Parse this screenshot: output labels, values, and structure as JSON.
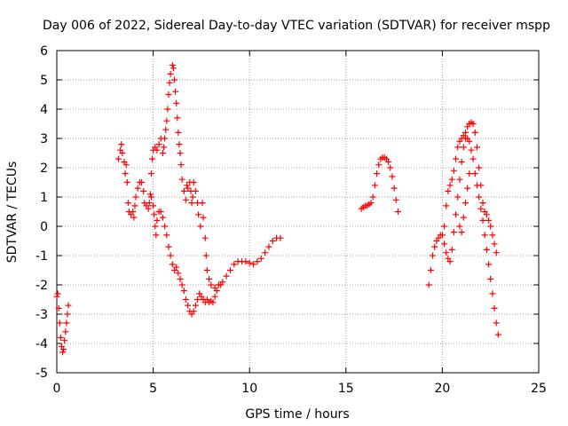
{
  "chart_data": {
    "type": "scatter",
    "title": "Day 006 of 2022, Sidereal Day-to-day VTEC variation (SDTVAR) for receiver mspp",
    "xlabel": "GPS time / hours",
    "ylabel": "SDTVAR / TECUs",
    "xlim": [
      0,
      25
    ],
    "ylim": [
      -5,
      6
    ],
    "x_ticks": [
      0,
      5,
      10,
      15,
      20,
      25
    ],
    "y_ticks": [
      -5,
      -4,
      -3,
      -2,
      -1,
      0,
      1,
      2,
      3,
      4,
      5,
      6
    ],
    "grid": true,
    "marker": "+",
    "color": "#ff0000",
    "series": [
      {
        "points": [
          [
            0.0,
            -2.4
          ],
          [
            0.05,
            -2.3
          ],
          [
            0.1,
            -2.8
          ],
          [
            0.15,
            -3.3
          ],
          [
            0.2,
            -3.8
          ],
          [
            0.25,
            -4.1
          ],
          [
            0.3,
            -4.3
          ],
          [
            0.35,
            -4.2
          ],
          [
            0.4,
            -3.9
          ],
          [
            0.45,
            -3.6
          ],
          [
            0.5,
            -3.3
          ],
          [
            0.55,
            -3.0
          ],
          [
            0.6,
            -2.7
          ],
          [
            3.2,
            2.3
          ],
          [
            3.3,
            2.6
          ],
          [
            3.35,
            2.8
          ],
          [
            3.4,
            2.5
          ],
          [
            3.5,
            2.2
          ],
          [
            3.55,
            1.8
          ],
          [
            3.6,
            2.1
          ],
          [
            3.65,
            1.5
          ],
          [
            3.7,
            0.8
          ],
          [
            3.75,
            0.5
          ],
          [
            3.85,
            0.4
          ],
          [
            3.95,
            0.5
          ],
          [
            4.0,
            0.3
          ],
          [
            4.05,
            0.7
          ],
          [
            4.1,
            1.0
          ],
          [
            4.2,
            1.3
          ],
          [
            4.3,
            1.5
          ],
          [
            4.4,
            1.5
          ],
          [
            4.5,
            1.2
          ],
          [
            4.55,
            0.8
          ],
          [
            4.65,
            0.7
          ],
          [
            4.75,
            0.6
          ],
          [
            4.8,
            0.8
          ],
          [
            4.85,
            1.1
          ],
          [
            4.9,
            1.8
          ],
          [
            4.95,
            2.3
          ],
          [
            5.0,
            2.6
          ],
          [
            5.1,
            2.7
          ],
          [
            5.2,
            2.6
          ],
          [
            5.3,
            2.8
          ],
          [
            5.4,
            3.0
          ],
          [
            5.5,
            2.5
          ],
          [
            5.55,
            2.7
          ],
          [
            5.6,
            3.0
          ],
          [
            5.65,
            3.3
          ],
          [
            5.7,
            3.6
          ],
          [
            5.75,
            4.0
          ],
          [
            5.8,
            4.5
          ],
          [
            5.85,
            4.9
          ],
          [
            5.9,
            5.2
          ],
          [
            6.0,
            5.5
          ],
          [
            6.05,
            5.4
          ],
          [
            6.1,
            5.0
          ],
          [
            6.15,
            4.6
          ],
          [
            6.2,
            4.2
          ],
          [
            6.25,
            3.7
          ],
          [
            6.3,
            3.2
          ],
          [
            6.35,
            2.8
          ],
          [
            6.4,
            2.5
          ],
          [
            6.45,
            2.1
          ],
          [
            6.5,
            1.6
          ],
          [
            6.6,
            1.2
          ],
          [
            6.7,
            0.9
          ],
          [
            6.75,
            1.4
          ],
          [
            6.8,
            1.3
          ],
          [
            6.9,
            1.5
          ],
          [
            6.95,
            1.2
          ],
          [
            7.0,
            0.8
          ],
          [
            7.05,
            1.0
          ],
          [
            7.1,
            1.5
          ],
          [
            7.2,
            1.2
          ],
          [
            7.3,
            0.8
          ],
          [
            7.35,
            0.4
          ],
          [
            7.45,
            0.0
          ],
          [
            7.55,
            0.8
          ],
          [
            7.6,
            0.3
          ],
          [
            7.7,
            -0.4
          ],
          [
            7.75,
            -1.0
          ],
          [
            7.8,
            -1.5
          ],
          [
            7.9,
            -1.8
          ],
          [
            8.0,
            -2.0
          ],
          [
            8.2,
            -2.1
          ],
          [
            8.4,
            -2.0
          ],
          [
            8.6,
            -1.9
          ],
          [
            8.8,
            -1.7
          ],
          [
            9.0,
            -1.5
          ],
          [
            9.2,
            -1.3
          ],
          [
            9.4,
            -1.2
          ],
          [
            9.6,
            -1.2
          ],
          [
            9.8,
            -1.2
          ],
          [
            10.0,
            -1.25
          ],
          [
            10.2,
            -1.3
          ],
          [
            10.4,
            -1.2
          ],
          [
            10.6,
            -1.1
          ],
          [
            10.8,
            -0.9
          ],
          [
            11.0,
            -0.7
          ],
          [
            11.2,
            -0.5
          ],
          [
            11.4,
            -0.4
          ],
          [
            11.6,
            -0.4
          ],
          [
            4.9,
            1.0
          ],
          [
            5.0,
            0.7
          ],
          [
            5.05,
            0.4
          ],
          [
            5.1,
            0.0
          ],
          [
            5.15,
            -0.3
          ],
          [
            5.2,
            0.2
          ],
          [
            5.3,
            0.5
          ],
          [
            5.4,
            0.5
          ],
          [
            5.5,
            0.3
          ],
          [
            5.6,
            0.0
          ],
          [
            5.7,
            -0.3
          ],
          [
            5.8,
            -0.7
          ],
          [
            5.9,
            -1.0
          ],
          [
            6.0,
            -1.3
          ],
          [
            6.1,
            -1.5
          ],
          [
            6.2,
            -1.4
          ],
          [
            6.3,
            -1.6
          ],
          [
            6.4,
            -1.8
          ],
          [
            6.5,
            -2.0
          ],
          [
            6.6,
            -2.2
          ],
          [
            6.7,
            -2.5
          ],
          [
            6.8,
            -2.7
          ],
          [
            6.9,
            -2.9
          ],
          [
            7.0,
            -3.0
          ],
          [
            7.1,
            -2.9
          ],
          [
            7.2,
            -2.7
          ],
          [
            7.3,
            -2.5
          ],
          [
            7.4,
            -2.3
          ],
          [
            7.5,
            -2.4
          ],
          [
            7.6,
            -2.5
          ],
          [
            7.7,
            -2.6
          ],
          [
            7.8,
            -2.5
          ],
          [
            7.9,
            -2.6
          ],
          [
            8.0,
            -2.55
          ],
          [
            8.1,
            -2.6
          ],
          [
            8.2,
            -2.4
          ],
          [
            8.3,
            -2.2
          ],
          [
            8.4,
            -2.0
          ],
          [
            8.5,
            -2.0
          ],
          [
            15.8,
            0.6
          ],
          [
            15.9,
            0.65
          ],
          [
            16.0,
            0.7
          ],
          [
            16.1,
            0.7
          ],
          [
            16.2,
            0.75
          ],
          [
            16.3,
            0.8
          ],
          [
            16.4,
            1.0
          ],
          [
            16.5,
            1.4
          ],
          [
            16.6,
            1.8
          ],
          [
            16.7,
            2.1
          ],
          [
            16.8,
            2.3
          ],
          [
            16.9,
            2.35
          ],
          [
            17.0,
            2.35
          ],
          [
            17.1,
            2.3
          ],
          [
            17.2,
            2.2
          ],
          [
            17.3,
            2.0
          ],
          [
            17.4,
            1.7
          ],
          [
            17.5,
            1.3
          ],
          [
            17.6,
            0.9
          ],
          [
            17.7,
            0.5
          ],
          [
            19.3,
            -2.0
          ],
          [
            19.4,
            -1.5
          ],
          [
            19.5,
            -1.0
          ],
          [
            19.6,
            -0.7
          ],
          [
            19.7,
            -0.5
          ],
          [
            19.8,
            -0.4
          ],
          [
            19.9,
            -0.3
          ],
          [
            20.0,
            -0.3
          ],
          [
            20.1,
            -0.6
          ],
          [
            20.2,
            -0.9
          ],
          [
            20.3,
            -1.1
          ],
          [
            20.4,
            -1.2
          ],
          [
            20.5,
            -0.8
          ],
          [
            20.6,
            -0.2
          ],
          [
            20.7,
            0.4
          ],
          [
            20.8,
            1.0
          ],
          [
            20.9,
            1.6
          ],
          [
            21.0,
            2.2
          ],
          [
            21.1,
            2.7
          ],
          [
            21.2,
            3.0
          ],
          [
            21.3,
            3.0
          ],
          [
            21.4,
            2.9
          ],
          [
            21.5,
            2.6
          ],
          [
            21.6,
            2.3
          ],
          [
            21.7,
            1.8
          ],
          [
            21.8,
            1.4
          ],
          [
            21.9,
            1.0
          ],
          [
            22.0,
            0.6
          ],
          [
            22.1,
            0.2
          ],
          [
            22.2,
            -0.3
          ],
          [
            22.3,
            -0.8
          ],
          [
            22.4,
            -1.3
          ],
          [
            22.5,
            -1.8
          ],
          [
            22.6,
            -2.3
          ],
          [
            22.7,
            -2.8
          ],
          [
            22.8,
            -3.3
          ],
          [
            22.9,
            -3.7
          ],
          [
            20.1,
            0.0
          ],
          [
            20.2,
            0.7
          ],
          [
            20.3,
            1.2
          ],
          [
            20.4,
            1.4
          ],
          [
            20.5,
            1.6
          ],
          [
            20.6,
            1.9
          ],
          [
            20.7,
            2.3
          ],
          [
            20.8,
            2.7
          ],
          [
            20.9,
            2.9
          ],
          [
            21.0,
            3.0
          ],
          [
            21.1,
            3.1
          ],
          [
            21.2,
            3.2
          ],
          [
            21.3,
            3.4
          ],
          [
            21.4,
            3.5
          ],
          [
            21.5,
            3.55
          ],
          [
            21.6,
            3.5
          ],
          [
            21.7,
            3.2
          ],
          [
            21.8,
            2.7
          ],
          [
            21.9,
            2.0
          ],
          [
            22.0,
            1.4
          ],
          [
            22.1,
            0.8
          ],
          [
            22.2,
            0.5
          ],
          [
            22.3,
            0.4
          ],
          [
            22.4,
            0.2
          ],
          [
            22.5,
            0.0
          ],
          [
            22.6,
            -0.3
          ],
          [
            22.7,
            -0.6
          ],
          [
            22.8,
            -0.9
          ],
          [
            20.9,
            0.0
          ],
          [
            21.0,
            -0.2
          ],
          [
            21.1,
            0.3
          ],
          [
            21.2,
            0.8
          ],
          [
            21.3,
            1.3
          ],
          [
            21.4,
            1.8
          ]
        ]
      }
    ]
  }
}
